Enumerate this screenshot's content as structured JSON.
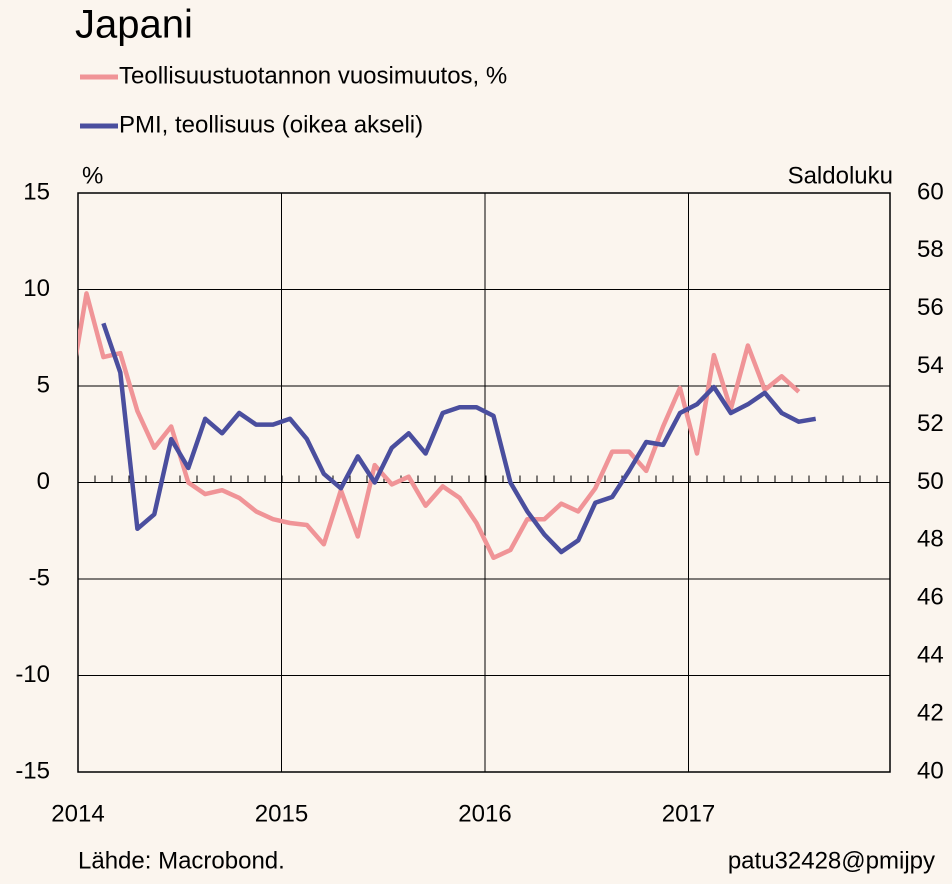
{
  "chart_data": {
    "type": "line",
    "title": "Japani",
    "ylabel": "%",
    "y2label": "Saldoluku",
    "source": "Lähde: Macrobond.",
    "credit": "patu32428@pmijpy",
    "x": [
      2013.958,
      2014.042,
      2014.125,
      2014.208,
      2014.292,
      2014.375,
      2014.458,
      2014.542,
      2014.625,
      2014.708,
      2014.792,
      2014.875,
      2014.958,
      2015.042,
      2015.125,
      2015.208,
      2015.292,
      2015.375,
      2015.458,
      2015.542,
      2015.625,
      2015.708,
      2015.792,
      2015.875,
      2015.958,
      2016.042,
      2016.125,
      2016.208,
      2016.292,
      2016.375,
      2016.458,
      2016.542,
      2016.625,
      2016.708,
      2016.792,
      2016.875,
      2016.958,
      2017.042,
      2017.125,
      2017.208,
      2017.292,
      2017.375,
      2017.458,
      2017.542,
      2017.625
    ],
    "series": [
      {
        "name": "Teollisuustuotannon vuosimuutos, %",
        "color": "#f09497",
        "axis": "y",
        "values": [
          4.6,
          9.8,
          6.5,
          6.7,
          3.7,
          1.8,
          2.9,
          0,
          -0.6,
          -0.4,
          -0.8,
          -1.5,
          -1.9,
          -2.1,
          -2.2,
          -3.2,
          -0.4,
          -2.8,
          0.9,
          -0.1,
          0.3,
          -1.2,
          -0.2,
          -0.8,
          -2.1,
          -3.9,
          -3.5,
          -1.9,
          -1.9,
          -1.1,
          -1.5,
          -0.3,
          1.6,
          1.6,
          0.6,
          2.9,
          4.9,
          1.5,
          6.6,
          3.8,
          7.1,
          4.8,
          5.5,
          4.7,
          null
        ]
      },
      {
        "name": "PMI, teollisuus (oikea akseli)",
        "color": "#4a4e9e",
        "axis": "y2",
        "values": [
          null,
          null,
          55.5,
          53.8,
          48.4,
          48.9,
          51.5,
          50.5,
          52.2,
          51.7,
          52.4,
          52.0,
          52.0,
          52.2,
          51.5,
          50.3,
          49.8,
          50.9,
          50.0,
          51.2,
          51.7,
          51.0,
          52.4,
          52.6,
          52.6,
          52.3,
          50.0,
          49.0,
          48.2,
          47.6,
          48.0,
          49.3,
          49.5,
          50.4,
          51.4,
          51.3,
          52.4,
          52.7,
          53.3,
          52.4,
          52.7,
          53.1,
          52.4,
          52.1,
          52.2
        ]
      }
    ],
    "xlim": [
      2014,
      2018
    ],
    "xticks": [
      2014,
      2015,
      2016,
      2017
    ],
    "ylim": [
      -15,
      15
    ],
    "yticks": [
      -15,
      -10,
      -5,
      0,
      5,
      10,
      15
    ],
    "y2lim": [
      40,
      60
    ],
    "y2ticks": [
      40,
      42,
      44,
      46,
      48,
      50,
      52,
      54,
      56,
      58,
      60
    ],
    "grid": true
  }
}
